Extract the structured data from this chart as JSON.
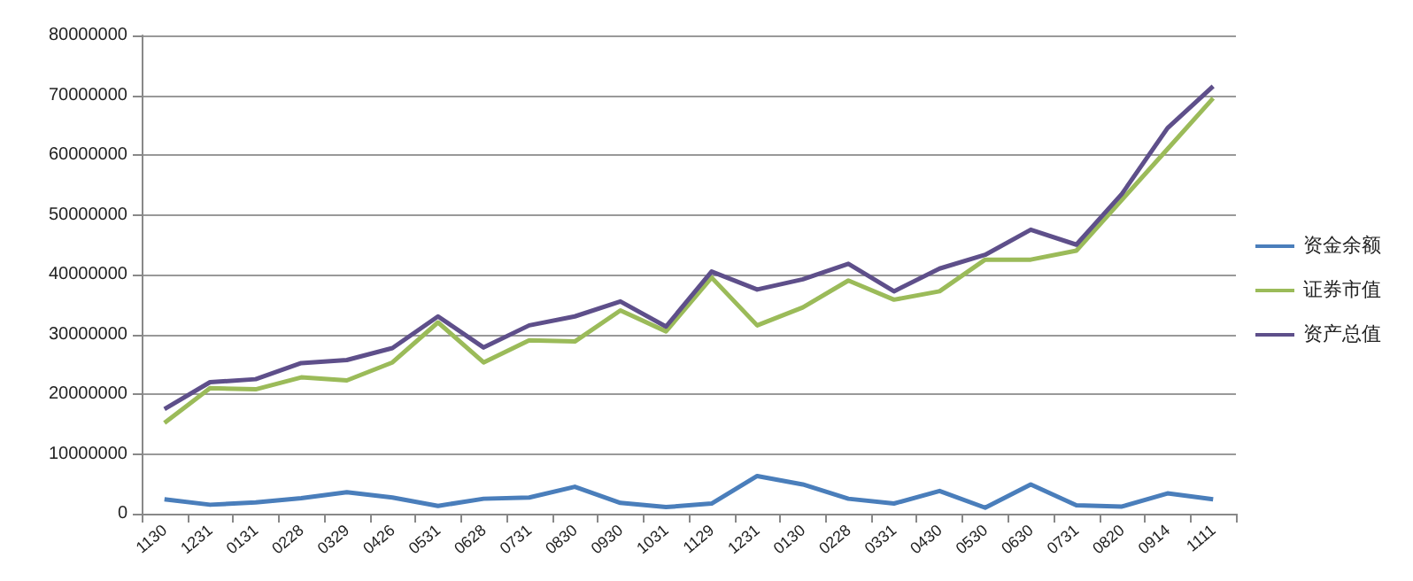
{
  "chart_data": {
    "type": "line",
    "categories": [
      "1130",
      "1231",
      "0131",
      "0228",
      "0329",
      "0426",
      "0531",
      "0628",
      "0731",
      "0830",
      "0930",
      "1031",
      "1129",
      "1231",
      "0130",
      "0228",
      "0331",
      "0430",
      "0530",
      "0630",
      "0731",
      "0820",
      "0914",
      "1111"
    ],
    "series": [
      {
        "name": "资金余额",
        "color": "#4a7ebb",
        "values": [
          2400000,
          1500000,
          1900000,
          2600000,
          3600000,
          2700000,
          1300000,
          2500000,
          2700000,
          4500000,
          1800000,
          1100000,
          1700000,
          6300000,
          4900000,
          2500000,
          1700000,
          3800000,
          1000000,
          4900000,
          1400000,
          1200000,
          3400000,
          2400000
        ]
      },
      {
        "name": "证券市值",
        "color": "#9bbb59",
        "values": [
          15200000,
          21000000,
          20800000,
          22800000,
          22300000,
          25300000,
          32000000,
          25300000,
          29000000,
          28800000,
          34000000,
          30500000,
          39500000,
          31500000,
          34500000,
          39000000,
          35800000,
          37200000,
          42500000,
          42500000,
          44000000,
          52500000,
          61000000,
          69500000
        ]
      },
      {
        "name": "资产总值",
        "color": "#5e4f8a",
        "values": [
          17500000,
          22000000,
          22500000,
          25200000,
          25700000,
          27700000,
          33000000,
          27800000,
          31500000,
          33000000,
          35500000,
          31300000,
          40500000,
          37500000,
          39200000,
          41800000,
          37200000,
          41000000,
          43300000,
          47500000,
          45000000,
          53500000,
          64500000,
          71500000
        ]
      }
    ],
    "ylim": [
      0,
      80000000
    ],
    "yticks": [
      0,
      10000000,
      20000000,
      30000000,
      40000000,
      50000000,
      60000000,
      70000000,
      80000000
    ],
    "grid": "y",
    "legend": "right",
    "marker": "none",
    "line_style": "solid"
  }
}
